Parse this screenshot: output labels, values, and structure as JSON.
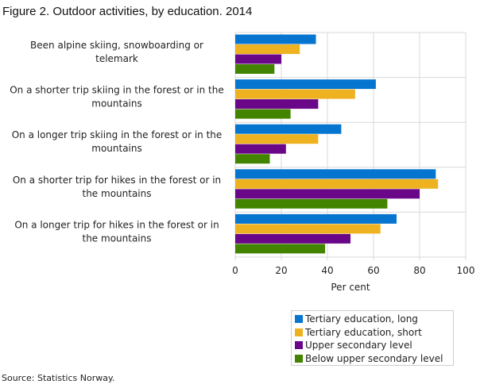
{
  "chart_data": {
    "type": "bar",
    "orientation": "horizontal",
    "title": "Figure 2. Outdoor activities, by education. 2014",
    "xlabel": "Per cent",
    "ylabel": "",
    "xlim": [
      0,
      100
    ],
    "xticks": [
      0,
      20,
      40,
      60,
      80,
      100
    ],
    "grid": true,
    "legend_position": "bottom-right",
    "categories": [
      [
        "Been alpine skiing, snowboarding or",
        "telemark"
      ],
      [
        "On a shorter trip skiing in the forest or in the",
        "mountains"
      ],
      [
        "On a longer trip skiing in the forest or in the",
        "mountains"
      ],
      [
        "On a shorter trip for hikes in the forest or in",
        "the mountains"
      ],
      [
        "On a longer trip for hikes in the forest or in",
        "the mountains"
      ]
    ],
    "series": [
      {
        "name": "Tertiary education, long",
        "color": "#0675cf",
        "values": [
          35,
          61,
          46,
          87,
          70
        ]
      },
      {
        "name": "Tertiary education, short",
        "color": "#eeb220",
        "values": [
          28,
          52,
          36,
          88,
          63
        ]
      },
      {
        "name": "Upper secondary level",
        "color": "#6a0788",
        "values": [
          20,
          36,
          22,
          80,
          50
        ]
      },
      {
        "name": "Below upper secondary level",
        "color": "#428400",
        "values": [
          17,
          24,
          15,
          66,
          39
        ]
      }
    ],
    "source": "Source: Statistics Norway."
  }
}
